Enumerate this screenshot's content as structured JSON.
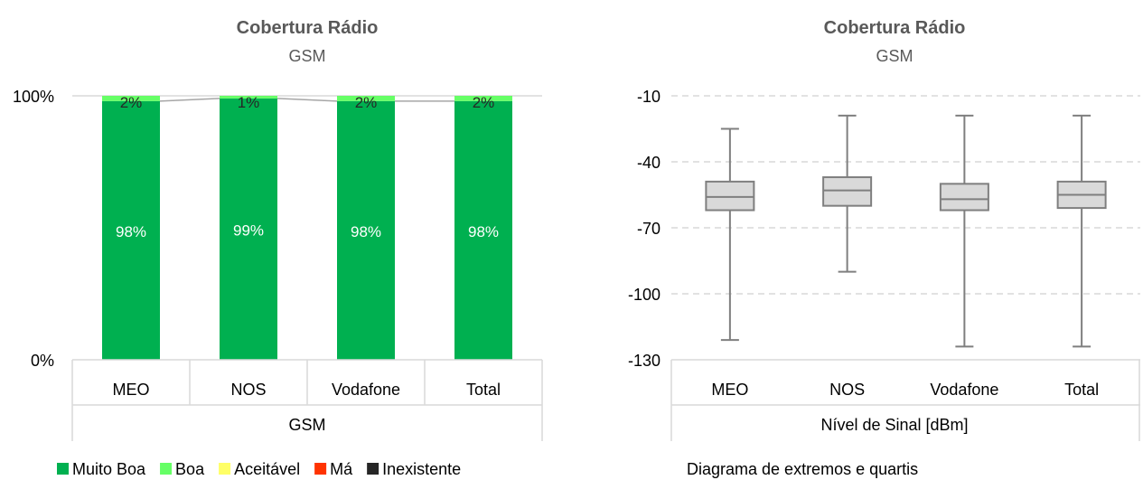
{
  "chart_data": [
    {
      "type": "bar",
      "stacked": true,
      "percent": true,
      "title": "Cobertura Rádio",
      "subtitle": "GSM",
      "categories": [
        "MEO",
        "NOS",
        "Vodafone",
        "Total"
      ],
      "group_label": "GSM",
      "y_ticks": [
        "0%",
        "100%"
      ],
      "ylim": [
        0,
        100
      ],
      "series": [
        {
          "name": "Muito Boa",
          "color": "#00b050",
          "values": [
            98,
            99,
            98,
            98
          ],
          "labels": [
            "98%",
            "99%",
            "98%",
            "98%"
          ]
        },
        {
          "name": "Boa",
          "color": "#66ff66",
          "values": [
            2,
            1,
            2,
            2
          ],
          "labels": [
            "2%",
            "1%",
            "2%",
            "2%"
          ]
        },
        {
          "name": "Aceitável",
          "color": "#ffff66",
          "values": [
            0,
            0,
            0,
            0
          ]
        },
        {
          "name": "Má",
          "color": "#ff3300",
          "values": [
            0,
            0,
            0,
            0
          ]
        },
        {
          "name": "Inexistente",
          "color": "#262626",
          "values": [
            0,
            0,
            0,
            0
          ]
        }
      ],
      "grid": true,
      "legend": "bottom"
    },
    {
      "type": "boxplot",
      "title": "Cobertura Rádio",
      "subtitle": "GSM",
      "categories": [
        "MEO",
        "NOS",
        "Vodafone",
        "Total"
      ],
      "xlabel": "Nível de Sinal [dBm]",
      "ylim": [
        -130,
        -10
      ],
      "y_ticks": [
        -10,
        -40,
        -70,
        -100,
        -130
      ],
      "boxes": [
        {
          "min": -121,
          "q1": -62,
          "median": -56,
          "q3": -49,
          "max": -25
        },
        {
          "min": -90,
          "q1": -60,
          "median": -53,
          "q3": -47,
          "max": -19
        },
        {
          "min": -124,
          "q1": -62,
          "median": -57,
          "q3": -50,
          "max": -19
        },
        {
          "min": -124,
          "q1": -61,
          "median": -55,
          "q3": -49,
          "max": -19
        }
      ],
      "box_color": "#d9d9d9",
      "line_color": "#7f7f7f",
      "grid": "dashed",
      "note": "Diagrama de extremos e quartis"
    }
  ]
}
